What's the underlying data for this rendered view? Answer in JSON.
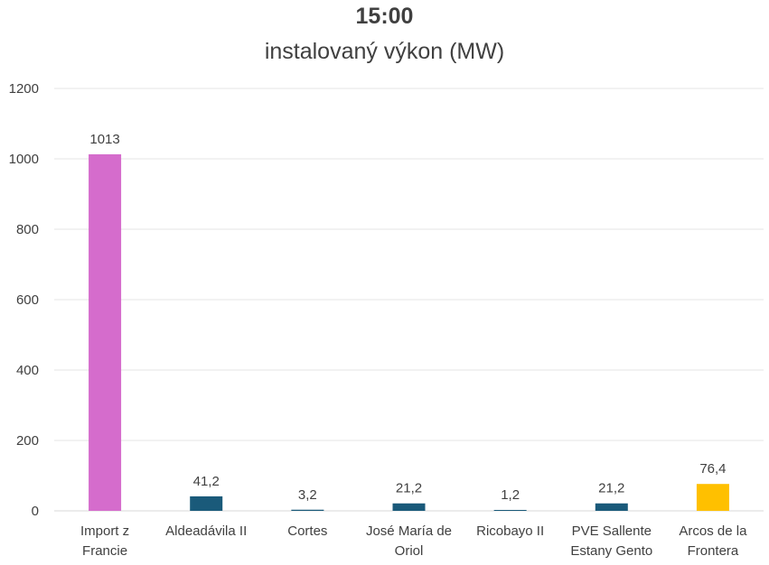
{
  "chart_data": {
    "type": "bar",
    "title": "15:00",
    "subtitle": "instalovaný výkon (MW)",
    "xlabel": "",
    "ylabel": "",
    "ylim": [
      0,
      1200
    ],
    "yticks": [
      0,
      200,
      400,
      600,
      800,
      1000,
      1200
    ],
    "grid": true,
    "legend": "none",
    "categories": [
      [
        "Import z",
        "Francie"
      ],
      [
        "Aldeadávila II"
      ],
      [
        "Cortes"
      ],
      [
        "José María de",
        "Oriol"
      ],
      [
        "Ricobayo II"
      ],
      [
        "PVE Sallente",
        "Estany Gento"
      ],
      [
        "Arcos de la",
        "Frontera"
      ]
    ],
    "values": [
      1013,
      41.2,
      3.2,
      21.2,
      1.2,
      21.2,
      76.4
    ],
    "data_labels": [
      "1013",
      "41,2",
      "3,2",
      "21,2",
      "1,2",
      "21,2",
      "76,4"
    ],
    "colors": [
      "#d56ccc",
      "#1a5a7a",
      "#1a5a7a",
      "#1a5a7a",
      "#1a5a7a",
      "#1a5a7a",
      "#ffc000"
    ]
  }
}
